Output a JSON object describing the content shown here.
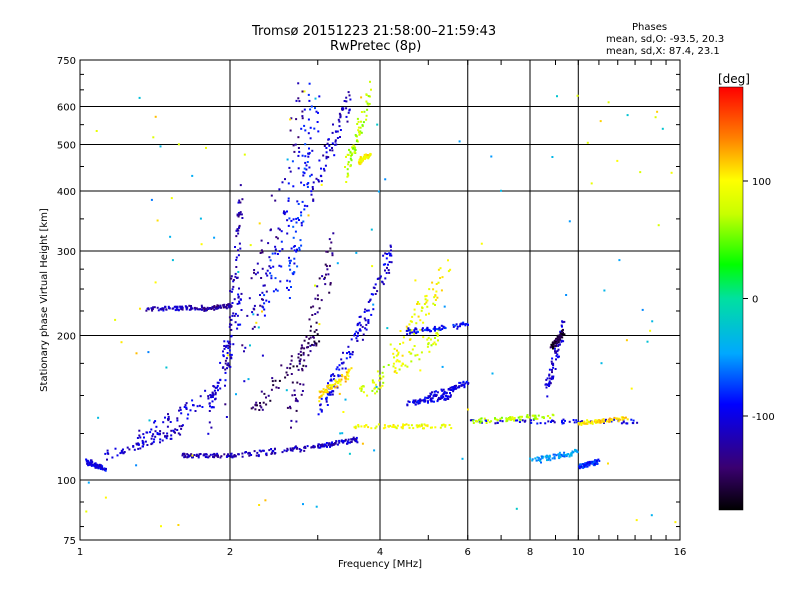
{
  "chart_data": {
    "type": "scatter",
    "title": "Tromsø 20151223 21:58:00–21:59:43",
    "subtitle": "RwPretec (8p)",
    "xlabel": "Frequency [MHz]",
    "ylabel": "Stationary phase Virtual Height [km]",
    "x_scale": "log",
    "y_scale": "log",
    "xlim": [
      1,
      16
    ],
    "ylim": [
      75,
      750
    ],
    "x_ticks": [
      1,
      2,
      4,
      6,
      8,
      10,
      16
    ],
    "y_ticks": [
      75,
      100,
      200,
      300,
      400,
      500,
      600,
      750
    ],
    "grid": true,
    "colorbar": {
      "label": "[deg]",
      "range": [
        -180,
        180
      ],
      "ticks": [
        100,
        0,
        -100
      ]
    },
    "stats": {
      "header": "Phases",
      "line_o": "mean, sd,O: -93.5, 20.3",
      "line_x": "mean, sd,X:  87.4, 23.1"
    },
    "series": [
      {
        "traces": [
          {
            "f": [
              1.02,
              1.12
            ],
            "h": [
              110,
              106
            ],
            "p": -100
          },
          {
            "f": [
              1.12,
              1.6
            ],
            "h": [
              112,
              128
            ],
            "p": -110
          },
          {
            "f": [
              1.3,
              1.9
            ],
            "h": [
              122,
              155
            ],
            "p": -105
          },
          {
            "f": [
              1.6,
              2.05
            ],
            "h": [
              113,
              113
            ],
            "p": -120
          },
          {
            "f": [
              2.05,
              3.0
            ],
            "h": [
              113,
              118
            ],
            "p": -115
          },
          {
            "f": [
              1.35,
              1.75
            ],
            "h": [
              228,
              230
            ],
            "p": -115
          },
          {
            "f": [
              1.75,
              2.0
            ],
            "h": [
              228,
              232
            ],
            "p": -130
          },
          {
            "f": [
              1.8,
              2.1
            ],
            "h": [
              130,
              240
            ],
            "p": -105
          },
          {
            "f": [
              1.95,
              2.1
            ],
            "h": [
              150,
              400
            ],
            "p": -120
          },
          {
            "f": [
              2.1,
              2.8
            ],
            "h": [
              180,
              650
            ],
            "p": -125
          },
          {
            "f": [
              2.3,
              2.9
            ],
            "h": [
              200,
              600
            ],
            "p": -90
          },
          {
            "f": [
              2.6,
              3.0
            ],
            "h": [
              250,
              580
            ],
            "p": -85
          },
          {
            "f": [
              2.9,
              3.5
            ],
            "h": [
              400,
              640
            ],
            "p": -110
          },
          {
            "f": [
              2.6,
              3.2
            ],
            "h": [
              130,
              300
            ],
            "p": -140
          },
          {
            "f": [
              2.2,
              3.0
            ],
            "h": [
              140,
              200
            ],
            "p": -150
          },
          {
            "f": [
              3.0,
              3.6
            ],
            "h": [
              118,
              122
            ],
            "p": -110
          },
          {
            "f": [
              3.0,
              3.6
            ],
            "h": [
              140,
              200
            ],
            "p": -100
          },
          {
            "f": [
              3.6,
              4.2
            ],
            "h": [
              200,
              300
            ],
            "p": -105
          },
          {
            "f": [
              3.4,
              3.8
            ],
            "h": [
              440,
              640
            ],
            "p": 70
          },
          {
            "f": [
              3.6,
              3.8
            ],
            "h": [
              460,
              480
            ],
            "p": 100
          },
          {
            "f": [
              3.0,
              3.5
            ],
            "h": [
              150,
              170
            ],
            "p": 110
          },
          {
            "f": [
              3.5,
              5.5
            ],
            "h": [
              130,
              130
            ],
            "p": 95
          },
          {
            "f": [
              3.6,
              5.2
            ],
            "h": [
              150,
              200
            ],
            "p": 80
          },
          {
            "f": [
              4.2,
              5.5
            ],
            "h": [
              175,
              285
            ],
            "p": 95
          },
          {
            "f": [
              4.5,
              6.0
            ],
            "h": [
              205,
              212
            ],
            "p": -90
          },
          {
            "f": [
              4.5,
              5.5
            ],
            "h": [
              145,
              150
            ],
            "p": -100
          },
          {
            "f": [
              5.0,
              6.0
            ],
            "h": [
              150,
              160
            ],
            "p": -100
          },
          {
            "f": [
              6.0,
              13.0
            ],
            "h": [
              133,
              133
            ],
            "p": -100
          },
          {
            "f": [
              6.0,
              9.0
            ],
            "h": [
              133,
              137
            ],
            "p": 70
          },
          {
            "f": [
              10.0,
              12.5
            ],
            "h": [
              132,
              135
            ],
            "p": 110
          },
          {
            "f": [
              8.6,
              9.3
            ],
            "h": [
              155,
              210
            ],
            "p": -110
          },
          {
            "f": [
              8.8,
              9.3
            ],
            "h": [
              190,
              205
            ],
            "p": -160
          },
          {
            "f": [
              8.0,
              10.0
            ],
            "h": [
              110,
              115
            ],
            "p": -50
          },
          {
            "f": [
              10.0,
              11.0
            ],
            "h": [
              107,
              110
            ],
            "p": -80
          },
          {
            "f": [
              1.0,
              16.0
            ],
            "h": [
              80,
              650
            ],
            "p": -40
          },
          {
            "f": [
              1.0,
              16.0
            ],
            "h": [
              80,
              650
            ],
            "p": 100
          }
        ]
      }
    ]
  }
}
